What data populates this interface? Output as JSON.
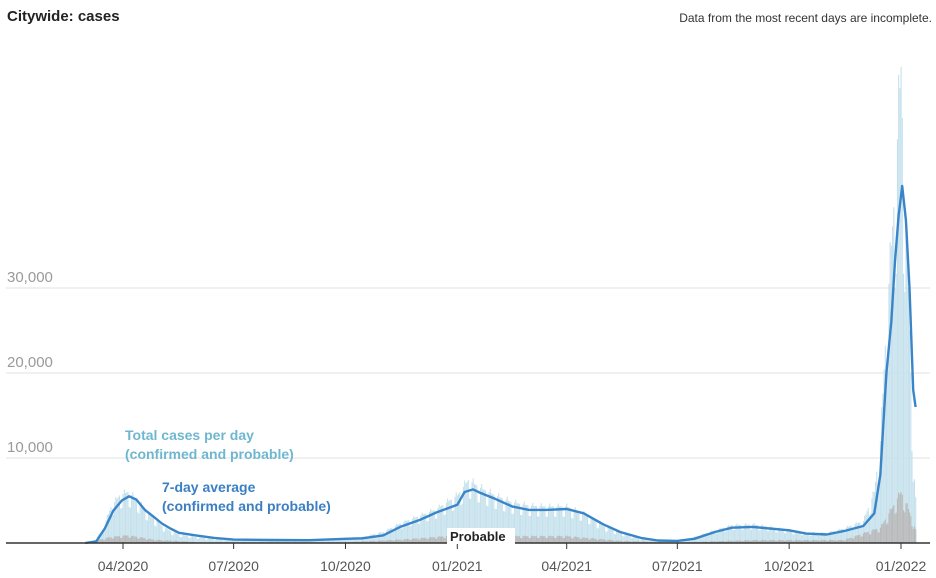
{
  "header": {
    "title": "Citywide: cases",
    "note": "Data from the most recent days are incomplete."
  },
  "chart_data": {
    "type": "bar",
    "title": "Citywide: cases",
    "ylim": [
      0,
      58000
    ],
    "grid": true,
    "y_ticks": [
      {
        "value": 10000,
        "label": "10,000"
      },
      {
        "value": 20000,
        "label": "20,000"
      },
      {
        "value": 30000,
        "label": "30,000"
      }
    ],
    "x_ticks": [
      {
        "date": "2020-04-01",
        "label": "04/2020"
      },
      {
        "date": "2020-07-01",
        "label": "07/2020"
      },
      {
        "date": "2020-10-01",
        "label": "10/2020"
      },
      {
        "date": "2021-01-01",
        "label": "01/2021"
      },
      {
        "date": "2021-04-01",
        "label": "04/2021"
      },
      {
        "date": "2021-07-01",
        "label": "07/2021"
      },
      {
        "date": "2021-10-01",
        "label": "10/2021"
      },
      {
        "date": "2022-01-01",
        "label": "01/2022"
      }
    ],
    "annotations": {
      "total_line1": "Total cases per day",
      "total_line2": "(confirmed and probable)",
      "avg_line1": "7-day average",
      "avg_line2": "(confirmed and probable)",
      "probable": "Probable"
    },
    "colors": {
      "total_bars": "#c5e1ec",
      "probable_bars": "#b9b9b9",
      "average_line": "#3a85c8"
    },
    "series": [
      {
        "name": "Total cases per day",
        "kind": "bars",
        "points": [
          [
            "2020-03-01",
            0
          ],
          [
            "2020-03-08",
            200
          ],
          [
            "2020-03-15",
            1500
          ],
          [
            "2020-03-22",
            4200
          ],
          [
            "2020-03-29",
            5600
          ],
          [
            "2020-04-05",
            6000
          ],
          [
            "2020-04-12",
            5200
          ],
          [
            "2020-04-19",
            3900
          ],
          [
            "2020-04-26",
            3000
          ],
          [
            "2020-05-03",
            2000
          ],
          [
            "2020-05-10",
            1400
          ],
          [
            "2020-05-17",
            1000
          ],
          [
            "2020-05-31",
            700
          ],
          [
            "2020-06-15",
            450
          ],
          [
            "2020-07-01",
            400
          ],
          [
            "2020-08-01",
            350
          ],
          [
            "2020-09-01",
            380
          ],
          [
            "2020-10-01",
            600
          ],
          [
            "2020-10-15",
            700
          ],
          [
            "2020-11-01",
            1300
          ],
          [
            "2020-11-15",
            2300
          ],
          [
            "2020-12-01",
            3200
          ],
          [
            "2020-12-15",
            4000
          ],
          [
            "2021-01-01",
            5600
          ],
          [
            "2021-01-10",
            7400
          ],
          [
            "2021-01-20",
            6500
          ],
          [
            "2021-02-01",
            5600
          ],
          [
            "2021-02-15",
            4800
          ],
          [
            "2021-03-01",
            4400
          ],
          [
            "2021-03-15",
            4300
          ],
          [
            "2021-04-01",
            4300
          ],
          [
            "2021-04-15",
            3500
          ],
          [
            "2021-05-01",
            2000
          ],
          [
            "2021-05-15",
            1200
          ],
          [
            "2021-06-01",
            500
          ],
          [
            "2021-06-15",
            300
          ],
          [
            "2021-07-01",
            300
          ],
          [
            "2021-07-15",
            700
          ],
          [
            "2021-08-01",
            1500
          ],
          [
            "2021-08-15",
            2100
          ],
          [
            "2021-09-01",
            2200
          ],
          [
            "2021-09-15",
            1900
          ],
          [
            "2021-10-01",
            1500
          ],
          [
            "2021-10-15",
            1200
          ],
          [
            "2021-11-01",
            1200
          ],
          [
            "2021-11-15",
            1700
          ],
          [
            "2021-12-01",
            2600
          ],
          [
            "2021-12-10",
            6000
          ],
          [
            "2021-12-15",
            12000
          ],
          [
            "2021-12-20",
            26000
          ],
          [
            "2021-12-24",
            35000
          ],
          [
            "2021-12-28",
            44000
          ],
          [
            "2021-12-30",
            51000
          ],
          [
            "2022-01-01",
            56000
          ],
          [
            "2022-01-03",
            44000
          ],
          [
            "2022-01-05",
            38000
          ],
          [
            "2022-01-07",
            30000
          ],
          [
            "2022-01-09",
            20000
          ],
          [
            "2022-01-11",
            10000
          ],
          [
            "2022-01-13",
            5000
          ]
        ]
      },
      {
        "name": "Probable",
        "kind": "bars",
        "points": [
          [
            "2020-03-01",
            0
          ],
          [
            "2020-03-22",
            700
          ],
          [
            "2020-04-05",
            900
          ],
          [
            "2020-04-26",
            400
          ],
          [
            "2020-06-01",
            100
          ],
          [
            "2020-10-01",
            100
          ],
          [
            "2020-11-15",
            400
          ],
          [
            "2020-12-15",
            700
          ],
          [
            "2021-01-10",
            1100
          ],
          [
            "2021-02-15",
            800
          ],
          [
            "2021-04-01",
            800
          ],
          [
            "2021-05-15",
            250
          ],
          [
            "2021-07-01",
            60
          ],
          [
            "2021-09-01",
            350
          ],
          [
            "2021-11-15",
            350
          ],
          [
            "2021-12-15",
            1800
          ],
          [
            "2021-12-25",
            4200
          ],
          [
            "2022-01-01",
            6000
          ],
          [
            "2022-01-07",
            4000
          ],
          [
            "2022-01-13",
            1500
          ]
        ]
      },
      {
        "name": "7-day average",
        "kind": "line",
        "points": [
          [
            "2020-03-01",
            0
          ],
          [
            "2020-03-10",
            200
          ],
          [
            "2020-03-17",
            1700
          ],
          [
            "2020-03-24",
            3800
          ],
          [
            "2020-03-31",
            5000
          ],
          [
            "2020-04-06",
            5500
          ],
          [
            "2020-04-12",
            5100
          ],
          [
            "2020-04-19",
            3900
          ],
          [
            "2020-04-26",
            3100
          ],
          [
            "2020-05-03",
            2300
          ],
          [
            "2020-05-10",
            1700
          ],
          [
            "2020-05-17",
            1200
          ],
          [
            "2020-05-31",
            900
          ],
          [
            "2020-06-15",
            600
          ],
          [
            "2020-07-01",
            400
          ],
          [
            "2020-08-01",
            350
          ],
          [
            "2020-09-01",
            330
          ],
          [
            "2020-10-01",
            500
          ],
          [
            "2020-10-15",
            550
          ],
          [
            "2020-11-01",
            900
          ],
          [
            "2020-11-15",
            1900
          ],
          [
            "2020-12-01",
            2700
          ],
          [
            "2020-12-15",
            3600
          ],
          [
            "2021-01-01",
            4500
          ],
          [
            "2021-01-07",
            6000
          ],
          [
            "2021-01-14",
            6300
          ],
          [
            "2021-01-20",
            5900
          ],
          [
            "2021-02-01",
            5200
          ],
          [
            "2021-02-15",
            4300
          ],
          [
            "2021-03-01",
            3900
          ],
          [
            "2021-03-15",
            3900
          ],
          [
            "2021-04-01",
            4000
          ],
          [
            "2021-04-15",
            3500
          ],
          [
            "2021-05-01",
            2200
          ],
          [
            "2021-05-15",
            1300
          ],
          [
            "2021-06-01",
            600
          ],
          [
            "2021-06-15",
            300
          ],
          [
            "2021-07-01",
            250
          ],
          [
            "2021-07-15",
            500
          ],
          [
            "2021-08-01",
            1300
          ],
          [
            "2021-08-15",
            1800
          ],
          [
            "2021-09-01",
            1900
          ],
          [
            "2021-09-15",
            1700
          ],
          [
            "2021-10-01",
            1500
          ],
          [
            "2021-10-15",
            1100
          ],
          [
            "2021-11-01",
            1000
          ],
          [
            "2021-11-15",
            1400
          ],
          [
            "2021-12-01",
            2000
          ],
          [
            "2021-12-10",
            3500
          ],
          [
            "2021-12-15",
            8000
          ],
          [
            "2021-12-20",
            20000
          ],
          [
            "2021-12-24",
            26000
          ],
          [
            "2021-12-27",
            33000
          ],
          [
            "2021-12-30",
            38500
          ],
          [
            "2022-01-02",
            42000
          ],
          [
            "2022-01-05",
            38000
          ],
          [
            "2022-01-08",
            30000
          ],
          [
            "2022-01-11",
            18000
          ],
          [
            "2022-01-13",
            16000
          ]
        ]
      }
    ]
  }
}
